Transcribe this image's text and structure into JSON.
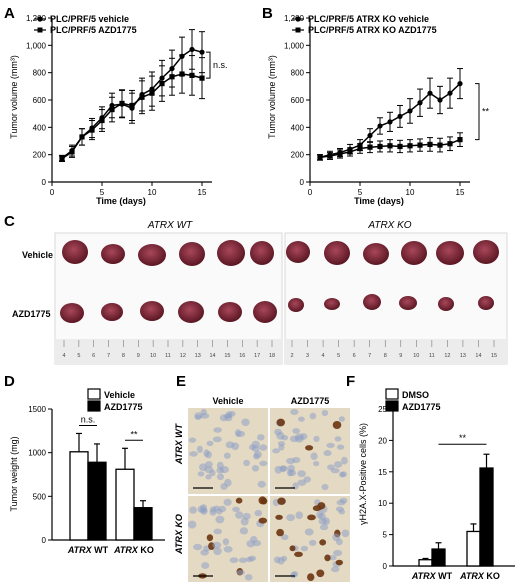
{
  "panels": {
    "A": "A",
    "B": "B",
    "C": "C",
    "D": "D",
    "E": "E",
    "F": "F"
  },
  "colors": {
    "ink": "#000000",
    "tumor_dark": "#5a1622",
    "tumor_light": "#a8475a",
    "photo_bg": "#fafafa",
    "ihc_bg": "#e4dac3",
    "nucleus_pale": "#8fa0c4",
    "nucleus_brown": "#6b3412"
  },
  "chart_data": [
    {
      "id": "A",
      "type": "line",
      "xlabel": "Time (days)",
      "ylabel": "Tumor volume (mm³)",
      "xlim": [
        0,
        16
      ],
      "ylim": [
        0,
        1200
      ],
      "xticks": [
        0,
        5,
        10,
        15
      ],
      "yticks": [
        0,
        200,
        400,
        600,
        800,
        "1,000",
        "1,200"
      ],
      "x": [
        1,
        2,
        3,
        4,
        5,
        6,
        7,
        8,
        9,
        10,
        11,
        12,
        13,
        14,
        15
      ],
      "series": [
        {
          "name": "PLC/PRF/5 vehicle",
          "marker": "circle",
          "values": [
            175,
            230,
            330,
            395,
            470,
            560,
            570,
            540,
            640,
            680,
            760,
            830,
            920,
            970,
            950
          ],
          "errors": [
            20,
            40,
            60,
            70,
            80,
            90,
            100,
            110,
            120,
            125,
            130,
            135,
            140,
            145,
            150
          ]
        },
        {
          "name": "PLC/PRF/5 AZD1775",
          "marker": "square",
          "values": [
            170,
            220,
            330,
            380,
            450,
            530,
            575,
            560,
            620,
            650,
            720,
            770,
            790,
            780,
            760
          ],
          "errors": [
            20,
            40,
            60,
            70,
            80,
            90,
            100,
            110,
            120,
            125,
            130,
            135,
            140,
            145,
            150
          ]
        }
      ],
      "annotation": "n.s."
    },
    {
      "id": "B",
      "type": "line",
      "xlabel": "Time (days)",
      "ylabel": "Tumor volume (mm³)",
      "xlim": [
        0,
        16
      ],
      "ylim": [
        0,
        1200
      ],
      "xticks": [
        0,
        5,
        10,
        15
      ],
      "yticks": [
        0,
        200,
        400,
        600,
        800,
        "1,000",
        "1,200"
      ],
      "x": [
        1,
        2,
        3,
        4,
        5,
        6,
        7,
        8,
        9,
        10,
        11,
        12,
        13,
        14,
        15
      ],
      "series": [
        {
          "name": "PLC/PRF/5 ATRX KO vehicle",
          "marker": "circle",
          "values": [
            180,
            200,
            215,
            240,
            270,
            340,
            410,
            440,
            480,
            520,
            580,
            650,
            600,
            650,
            720
          ],
          "errors": [
            20,
            25,
            30,
            35,
            40,
            50,
            60,
            70,
            80,
            90,
            100,
            110,
            100,
            110,
            110
          ]
        },
        {
          "name": "PLC/PRF/5 ATRX KO AZD1775",
          "marker": "square",
          "values": [
            180,
            190,
            205,
            220,
            245,
            255,
            260,
            265,
            260,
            265,
            270,
            275,
            270,
            280,
            310
          ],
          "errors": [
            20,
            25,
            30,
            30,
            35,
            40,
            40,
            45,
            45,
            45,
            45,
            50,
            50,
            50,
            50
          ]
        }
      ],
      "annotation": "**"
    },
    {
      "id": "D",
      "type": "bar",
      "ylabel": "Tumor weight (mg)",
      "ylim": [
        0,
        1500
      ],
      "yticks": [
        0,
        500,
        1000,
        1500
      ],
      "groups": [
        "ATRX WT",
        "ATRX KO"
      ],
      "series": [
        {
          "name": "Vehicle",
          "fill": "#ffffff",
          "values": [
            1010,
            810
          ],
          "errors": [
            210,
            240
          ]
        },
        {
          "name": "AZD1775",
          "fill": "#000000",
          "values": [
            890,
            370
          ],
          "errors": [
            210,
            80
          ]
        }
      ],
      "annotations": [
        "n.s.",
        "**"
      ]
    },
    {
      "id": "F",
      "type": "bar",
      "ylabel": "γH2A.X-Positive cells (%)",
      "ylim": [
        0,
        25
      ],
      "yticks": [
        0,
        5,
        10,
        15,
        20,
        25
      ],
      "groups": [
        "ATRX WT",
        "ATRX KO"
      ],
      "series": [
        {
          "name": "DMSO",
          "fill": "#ffffff",
          "values": [
            1.0,
            5.5
          ],
          "errors": [
            0.2,
            1.2
          ]
        },
        {
          "name": "AZD1775",
          "fill": "#000000",
          "values": [
            2.7,
            15.6
          ],
          "errors": [
            1.0,
            2.2
          ]
        }
      ],
      "annotation": "**"
    }
  ],
  "photo": {
    "left_title": "ATRX WT",
    "right_title": "ATRX KO",
    "row_labels": [
      "Vehicle",
      "AZD1775"
    ],
    "left_ruler": [
      "4",
      "5",
      "6",
      "7",
      "8",
      "9",
      "10",
      "11",
      "12",
      "13",
      "14",
      "15",
      "16",
      "17",
      "18"
    ],
    "right_ruler": [
      "2",
      "3",
      "4",
      "5",
      "6",
      "7",
      "8",
      "9",
      "10",
      "11",
      "12",
      "13",
      "14",
      "15"
    ]
  },
  "ihc": {
    "col_labels": [
      "Vehicle",
      "AZD1775"
    ],
    "row_labels": [
      "ATRX WT",
      "ATRX KO"
    ]
  }
}
